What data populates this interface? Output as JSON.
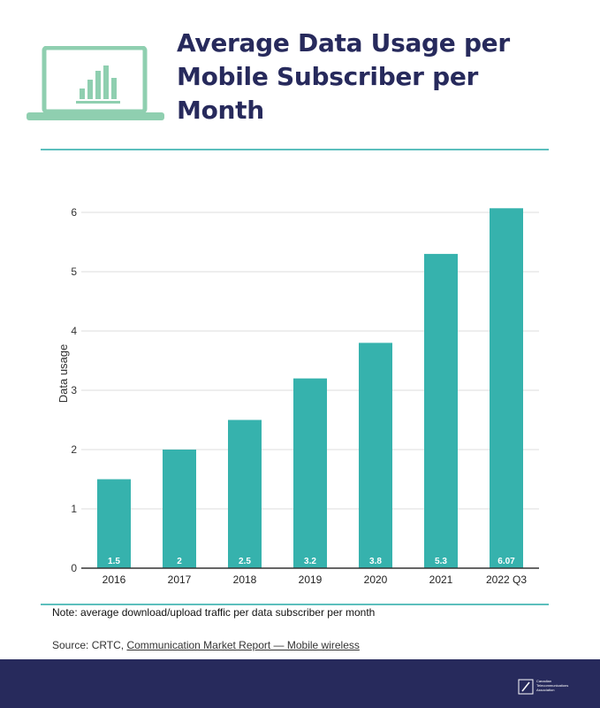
{
  "header": {
    "title_lines": [
      "Average Data Usage per",
      "Mobile Subscriber per",
      "Month"
    ],
    "icon": "laptop-chart-icon"
  },
  "colors": {
    "navy": "#272a5c",
    "teal": "#36b2ad",
    "accent_line": "#5cbfbd"
  },
  "chart_data": {
    "type": "bar",
    "categories": [
      "2016",
      "2017",
      "2018",
      "2019",
      "2020",
      "2021",
      "2022 Q3"
    ],
    "values": [
      1.5,
      2,
      2.5,
      3.2,
      3.8,
      5.3,
      6.07
    ],
    "value_labels": [
      "1.5",
      "2",
      "2.5",
      "3.2",
      "3.8",
      "5.3",
      "6.07"
    ],
    "ylabel": "Data usage",
    "xlabel": "",
    "ylim": [
      0,
      6
    ],
    "yticks": [
      0,
      1,
      2,
      3,
      4,
      5,
      6
    ],
    "grid": true,
    "bar_color": "#36b2ad"
  },
  "footnotes": {
    "note": "Note: average download/upload traffic per data subscriber per month",
    "source_prefix": "Source: CRTC, ",
    "source_link": "Communication Market Report — Mobile wireless"
  },
  "footer": {
    "org_lines": [
      "Canadian",
      "Telecommunications",
      "Association"
    ],
    "logo_icon": "cta-logo-icon"
  }
}
